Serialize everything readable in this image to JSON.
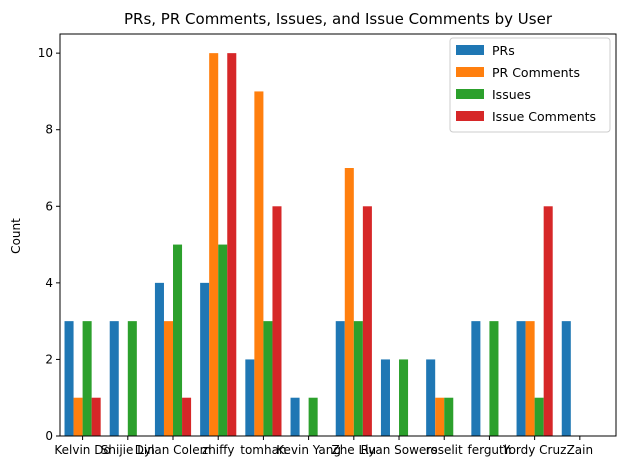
{
  "chart_data": {
    "type": "bar",
    "title": "PRs, PR Comments, Issues, and Issue Comments by User",
    "xlabel": "",
    "ylabel": "Count",
    "ylim": [
      0,
      10.5
    ],
    "yticks": [
      0,
      2,
      4,
      6,
      8,
      10
    ],
    "grid": false,
    "legend_position": "top-right",
    "categories": [
      "Kelvin Do",
      "Shijie Lin",
      "Dylan Colem",
      "zhiffy",
      "tomhan",
      "Kevin Yang",
      "Zhe Liu",
      "Ryan Sowers",
      "roselit",
      "ferguth",
      "Yordy Cruz",
      "Zain"
    ],
    "series": [
      {
        "name": "PRs",
        "color": "#1f77b4",
        "values": [
          3,
          3,
          4,
          4,
          2,
          1,
          3,
          2,
          2,
          3,
          3,
          3
        ]
      },
      {
        "name": "PR Comments",
        "color": "#ff7f0e",
        "values": [
          1,
          0,
          3,
          10,
          9,
          0,
          7,
          0,
          1,
          0,
          3,
          0
        ]
      },
      {
        "name": "Issues",
        "color": "#2ca02c",
        "values": [
          3,
          3,
          5,
          5,
          3,
          1,
          3,
          2,
          1,
          3,
          1,
          0
        ]
      },
      {
        "name": "Issue Comments",
        "color": "#d62728",
        "values": [
          1,
          0,
          1,
          10,
          6,
          0,
          6,
          0,
          0,
          0,
          6,
          0
        ]
      }
    ]
  }
}
